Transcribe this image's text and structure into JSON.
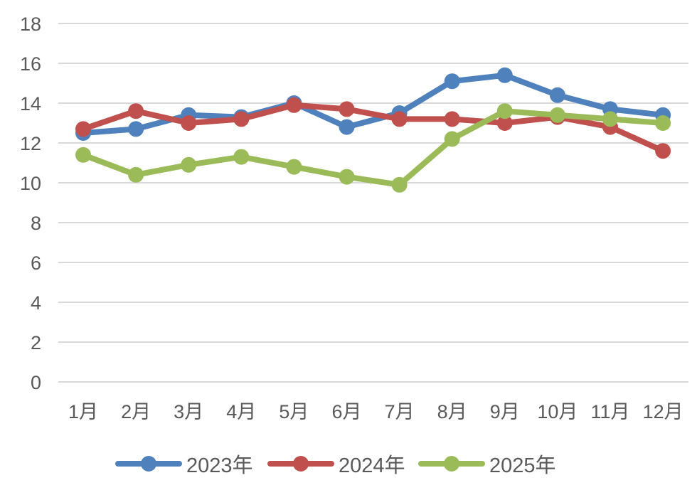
{
  "chart_data": {
    "type": "line",
    "title": "",
    "xlabel": "",
    "ylabel": "",
    "categories": [
      "1月",
      "2月",
      "3月",
      "4月",
      "5月",
      "6月",
      "7月",
      "8月",
      "9月",
      "10月",
      "11月",
      "12月"
    ],
    "ylim": [
      0,
      18
    ],
    "yticks": [
      0,
      2,
      4,
      6,
      8,
      10,
      12,
      14,
      16,
      18
    ],
    "grid": true,
    "legend_position": "bottom",
    "series": [
      {
        "name": "2023年",
        "color": "#4f81bd",
        "values": [
          12.5,
          12.7,
          13.4,
          13.3,
          14.0,
          12.8,
          13.5,
          15.1,
          15.4,
          14.4,
          13.7,
          13.4
        ]
      },
      {
        "name": "2024年",
        "color": "#c0504d",
        "values": [
          12.7,
          13.6,
          13.0,
          13.2,
          13.9,
          13.7,
          13.2,
          13.2,
          13.0,
          13.3,
          12.8,
          11.6
        ]
      },
      {
        "name": "2025年",
        "color": "#9bbb59",
        "values": [
          11.4,
          10.4,
          10.9,
          11.3,
          10.8,
          10.3,
          9.9,
          12.2,
          13.6,
          13.4,
          13.2,
          13.0
        ]
      }
    ]
  }
}
